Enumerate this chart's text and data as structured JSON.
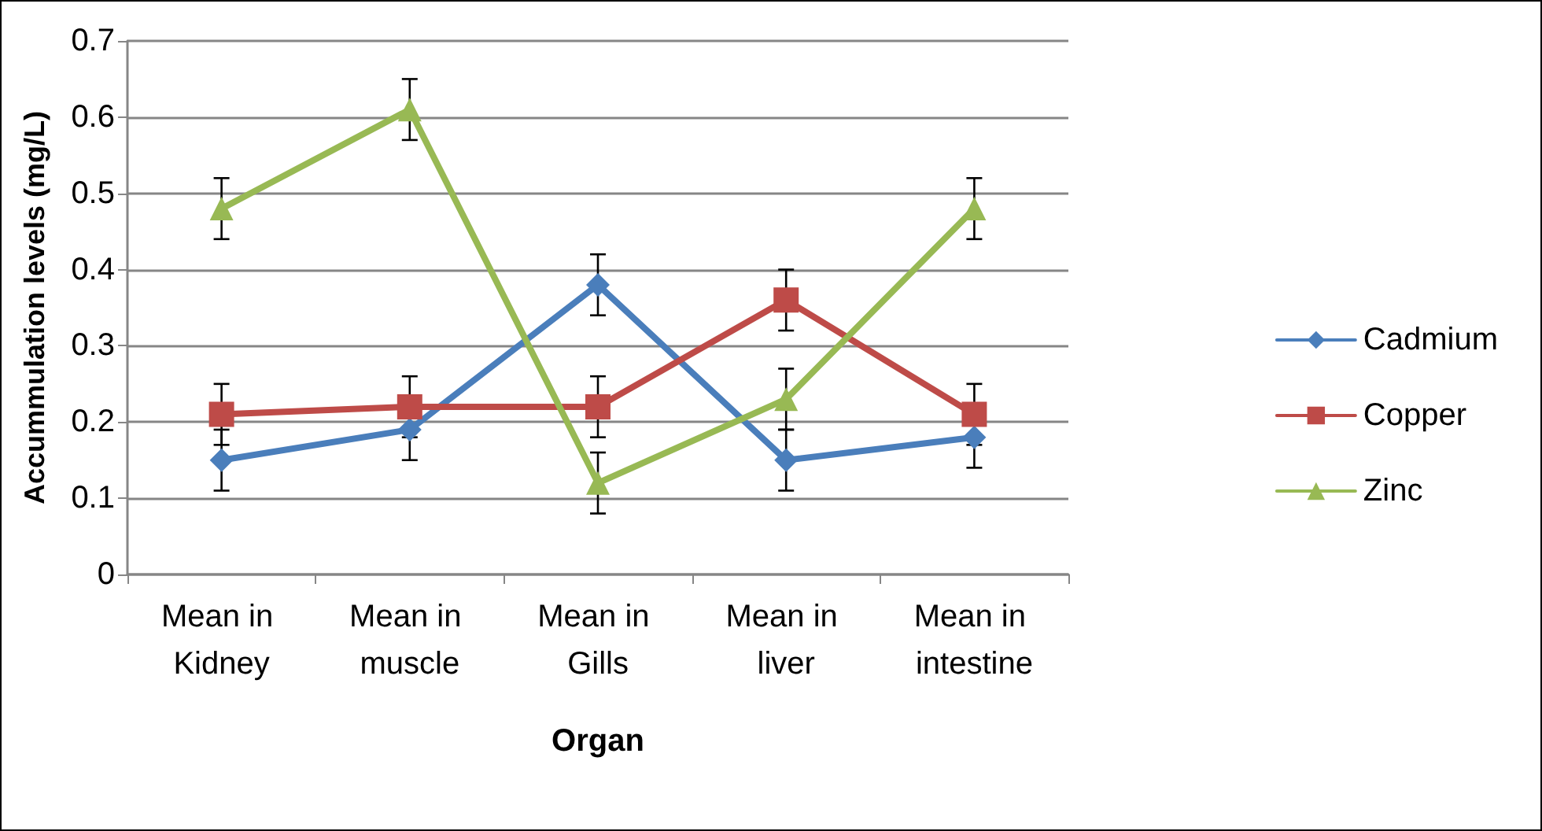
{
  "chart_data": {
    "type": "line",
    "xlabel": "Organ",
    "ylabel": "Accummulation levels (mg/L)",
    "categories": [
      "Mean in Kidney",
      "Mean in muscle",
      "Mean in Gills",
      "Mean in liver",
      "Mean in intestine"
    ],
    "series": [
      {
        "name": "Cadmium",
        "color": "#4a7ebb",
        "marker": "diamond",
        "values": [
          0.15,
          0.19,
          0.38,
          0.15,
          0.18
        ],
        "errors": [
          0.04,
          0.04,
          0.04,
          0.04,
          0.04
        ]
      },
      {
        "name": "Copper",
        "color": "#be4b48",
        "marker": "square",
        "values": [
          0.21,
          0.22,
          0.22,
          0.36,
          0.21
        ],
        "errors": [
          0.04,
          0.04,
          0.04,
          0.04,
          0.04
        ]
      },
      {
        "name": "Zinc",
        "color": "#98b954",
        "marker": "triangle",
        "values": [
          0.48,
          0.61,
          0.12,
          0.23,
          0.48
        ],
        "errors": [
          0.04,
          0.04,
          0.04,
          0.04,
          0.04
        ]
      }
    ],
    "ylim": [
      0,
      0.7
    ],
    "yticks": [
      0,
      0.1,
      0.2,
      0.3,
      0.4,
      0.5,
      0.6,
      0.7
    ],
    "grid": "y",
    "legend": "right",
    "line_style": "solid"
  }
}
